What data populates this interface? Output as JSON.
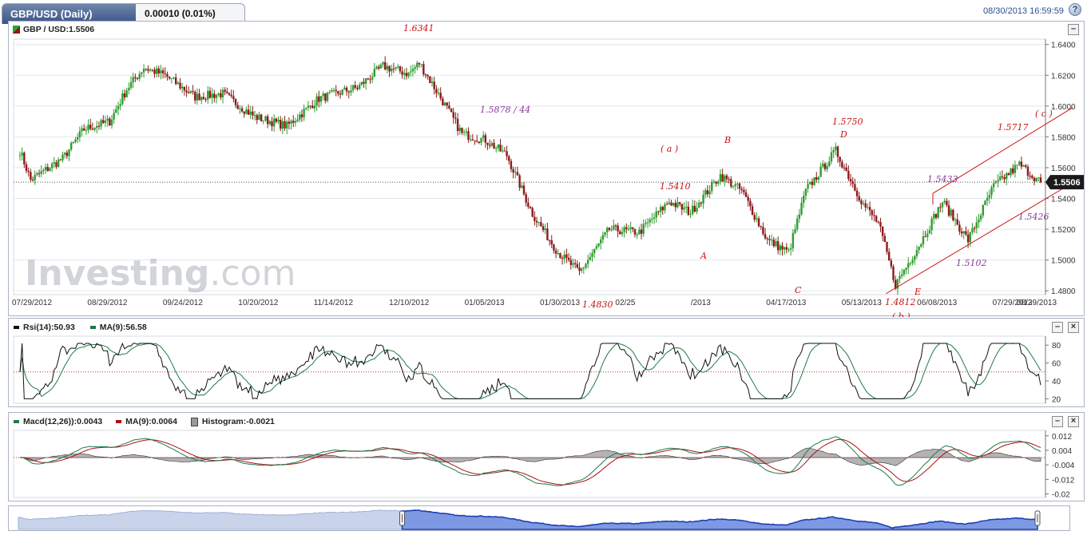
{
  "header": {
    "title": "GBP/USD (Daily)",
    "change": "0.00010 (0.01%)",
    "datetime": "08/30/2013 16:59:59",
    "help_icon": "help-icon"
  },
  "colors": {
    "up": "#2e9e2e",
    "down": "#8b1a1a",
    "annotation": "#cc1111",
    "annotation_purple": "#8a3a9a",
    "rsi": "#111111",
    "rsi_ma": "#1d7a4a",
    "macd": "#1d7a4a",
    "macd_ma": "#aa1111",
    "hist": "#9a9a9a",
    "nav": "#1e3fb0"
  },
  "watermark": {
    "main": "Investing",
    "suffix": ".com"
  },
  "chart_data": [
    {
      "type": "candlestick",
      "legend": "GBP / USD:1.5506",
      "last_price": "1.5506",
      "y_ticks": [
        "1.6400",
        "1.6200",
        "1.6000",
        "1.5800",
        "1.5600",
        "1.5400",
        "1.5200",
        "1.5000",
        "1.4800"
      ],
      "ylim": [
        1.4775,
        1.6435
      ],
      "x_labels": [
        "07/29/2012",
        "08/29/2012",
        "09/24/2012",
        "10/20/2012",
        "11/14/2012",
        "12/10/2012",
        "01/05/2013",
        "01/30/2013",
        "02/25",
        "/2013",
        "04/17/2013",
        "05/13/2013",
        "06/08/2013",
        "07/29/2013",
        "08/29/2013"
      ],
      "series_anchors": [
        {
          "i": 0,
          "v": 1.571
        },
        {
          "i": 5,
          "v": 1.552
        },
        {
          "i": 20,
          "v": 1.566
        },
        {
          "i": 30,
          "v": 1.585
        },
        {
          "i": 42,
          "v": 1.59
        },
        {
          "i": 50,
          "v": 1.611
        },
        {
          "i": 58,
          "v": 1.625
        },
        {
          "i": 68,
          "v": 1.62
        },
        {
          "i": 82,
          "v": 1.606
        },
        {
          "i": 95,
          "v": 1.608
        },
        {
          "i": 110,
          "v": 1.593
        },
        {
          "i": 125,
          "v": 1.587
        },
        {
          "i": 140,
          "v": 1.605
        },
        {
          "i": 158,
          "v": 1.612
        },
        {
          "i": 170,
          "v": 1.626
        },
        {
          "i": 182,
          "v": 1.621
        },
        {
          "i": 187,
          "v": 1.628
        },
        {
          "i": 195,
          "v": 1.61
        },
        {
          "i": 207,
          "v": 1.582
        },
        {
          "i": 218,
          "v": 1.578
        },
        {
          "i": 228,
          "v": 1.568
        },
        {
          "i": 240,
          "v": 1.53
        },
        {
          "i": 252,
          "v": 1.505
        },
        {
          "i": 262,
          "v": 1.492
        },
        {
          "i": 276,
          "v": 1.52
        },
        {
          "i": 290,
          "v": 1.518
        },
        {
          "i": 304,
          "v": 1.538
        },
        {
          "i": 314,
          "v": 1.531
        },
        {
          "i": 328,
          "v": 1.555
        },
        {
          "i": 338,
          "v": 1.545
        },
        {
          "i": 350,
          "v": 1.513
        },
        {
          "i": 360,
          "v": 1.505
        },
        {
          "i": 368,
          "v": 1.545
        },
        {
          "i": 382,
          "v": 1.571
        },
        {
          "i": 395,
          "v": 1.536
        },
        {
          "i": 402,
          "v": 1.524
        },
        {
          "i": 410,
          "v": 1.484
        },
        {
          "i": 422,
          "v": 1.512
        },
        {
          "i": 432,
          "v": 1.538
        },
        {
          "i": 444,
          "v": 1.513
        },
        {
          "i": 456,
          "v": 1.548
        },
        {
          "i": 468,
          "v": 1.562
        },
        {
          "i": 478,
          "v": 1.5506
        }
      ],
      "annotations": [
        {
          "text": "1.6341",
          "color": "red"
        },
        {
          "text": "1.5878 / 44",
          "color": "purple"
        },
        {
          "text": "1.4830",
          "color": "red"
        },
        {
          "text": "1.5410",
          "color": "red"
        },
        {
          "text": "( a )",
          "color": "red"
        },
        {
          "text": "B",
          "color": "red"
        },
        {
          "text": "A",
          "color": "red"
        },
        {
          "text": "C",
          "color": "red"
        },
        {
          "text": "1.5750",
          "color": "red"
        },
        {
          "text": "D",
          "color": "red"
        },
        {
          "text": "1.4812",
          "color": "red"
        },
        {
          "text": "( b )",
          "color": "red"
        },
        {
          "text": "E",
          "color": "red"
        },
        {
          "text": "1.5433",
          "color": "purple"
        },
        {
          "text": "1.5717",
          "color": "red"
        },
        {
          "text": "( c )",
          "color": "red"
        },
        {
          "text": "1.5426",
          "color": "purple"
        },
        {
          "text": "1.5102",
          "color": "purple"
        }
      ],
      "channel": {
        "upper": [
          [
            1.5433,
            1.599
          ]
        ],
        "lower": [
          [
            1.4812,
            1.545
          ]
        ]
      }
    },
    {
      "type": "line",
      "legend_rsi": "Rsi(14):50.93",
      "legend_ma": "MA(9):56.58",
      "y_ticks": [
        "80",
        "60",
        "40",
        "20"
      ],
      "ylim": [
        15,
        90
      ],
      "reference_line": 50
    },
    {
      "type": "line",
      "legend_macd": "Macd(12,26)):0.0043",
      "legend_ma": "MA(9):0.0064",
      "legend_hist": "Histogram:-0.0021",
      "y_ticks": [
        "0.012",
        "0.004",
        "-0.004",
        "-0.012",
        "-0.02"
      ],
      "ylim": [
        -0.022,
        0.015
      ],
      "reference_line": 0
    }
  ]
}
